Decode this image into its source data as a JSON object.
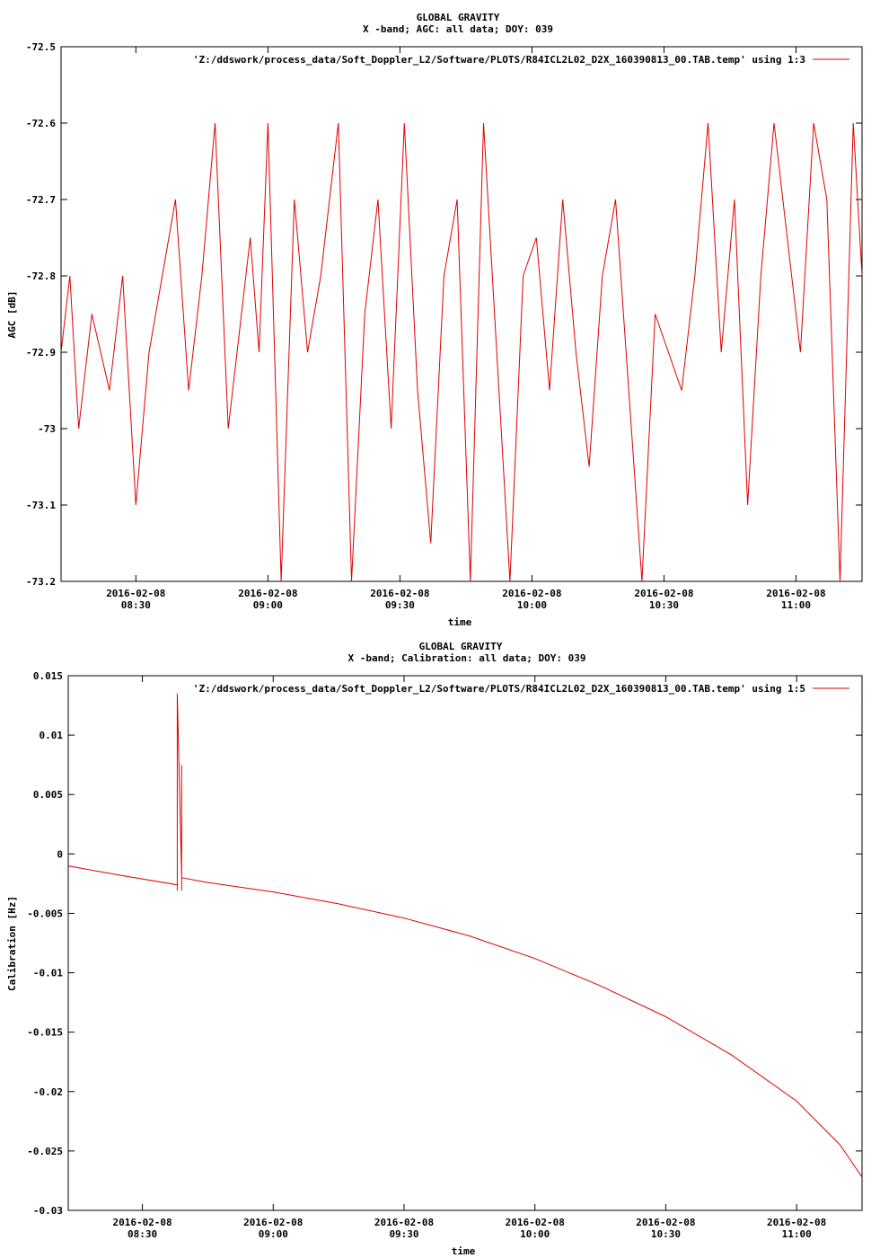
{
  "chart_data": [
    {
      "type": "line",
      "title": "GLOBAL GRAVITY",
      "subtitle": "X -band; AGC: all data; DOY: 039",
      "xlabel": "time",
      "ylabel": "AGC [dB]",
      "legend": "'Z:/ddswork/process_data/Soft_Doppler_L2/Software/PLOTS/R84ICL2L02_D2X_160390813_00.TAB.temp' using 1:3",
      "legend_position": "top-right",
      "line_color": "#dd0000",
      "ylim": [
        -73.2,
        -72.5
      ],
      "xlim": [
        "2016-02-08 08:13",
        "2016-02-08 11:15"
      ],
      "ytick_values": [
        -72.5,
        -72.6,
        -72.7,
        -72.8,
        -72.9,
        -73,
        -73.1,
        -73.2
      ],
      "ytick_labels": [
        "-72.5",
        "-72.6",
        "-72.7",
        "-72.8",
        "-72.9",
        "-73",
        "-73.1",
        "-73.2"
      ],
      "xtick_values": [
        "2016-02-08 08:30",
        "2016-02-08 09:00",
        "2016-02-08 09:30",
        "2016-02-08 10:00",
        "2016-02-08 10:30",
        "2016-02-08 11:00"
      ],
      "xtick_labels": [
        {
          "date": "2016-02-08",
          "time": "08:30"
        },
        {
          "date": "2016-02-08",
          "time": "09:00"
        },
        {
          "date": "2016-02-08",
          "time": "09:30"
        },
        {
          "date": "2016-02-08",
          "time": "10:00"
        },
        {
          "date": "2016-02-08",
          "time": "10:30"
        },
        {
          "date": "2016-02-08",
          "time": "11:00"
        }
      ],
      "series": [
        {
          "x": [
            "2016-02-08 08:13",
            "2016-02-08 08:15",
            "2016-02-08 08:17",
            "2016-02-08 08:20",
            "2016-02-08 08:24",
            "2016-02-08 08:27",
            "2016-02-08 08:30",
            "2016-02-08 08:33",
            "2016-02-08 08:36",
            "2016-02-08 08:39",
            "2016-02-08 08:42",
            "2016-02-08 08:45",
            "2016-02-08 08:48",
            "2016-02-08 08:51",
            "2016-02-08 08:54",
            "2016-02-08 08:56",
            "2016-02-08 08:58",
            "2016-02-08 09:00",
            "2016-02-08 09:03",
            "2016-02-08 09:06",
            "2016-02-08 09:09",
            "2016-02-08 09:12",
            "2016-02-08 09:16",
            "2016-02-08 09:19",
            "2016-02-08 09:22",
            "2016-02-08 09:25",
            "2016-02-08 09:28",
            "2016-02-08 09:31",
            "2016-02-08 09:34",
            "2016-02-08 09:37",
            "2016-02-08 09:40",
            "2016-02-08 09:43",
            "2016-02-08 09:46",
            "2016-02-08 09:49",
            "2016-02-08 09:52",
            "2016-02-08 09:55",
            "2016-02-08 09:58",
            "2016-02-08 10:01",
            "2016-02-08 10:04",
            "2016-02-08 10:07",
            "2016-02-08 10:10",
            "2016-02-08 10:13",
            "2016-02-08 10:16",
            "2016-02-08 10:19",
            "2016-02-08 10:22",
            "2016-02-08 10:25",
            "2016-02-08 10:28",
            "2016-02-08 10:31",
            "2016-02-08 10:34",
            "2016-02-08 10:37",
            "2016-02-08 10:40",
            "2016-02-08 10:43",
            "2016-02-08 10:46",
            "2016-02-08 10:49",
            "2016-02-08 10:52",
            "2016-02-08 10:55",
            "2016-02-08 10:58",
            "2016-02-08 11:01",
            "2016-02-08 11:04",
            "2016-02-08 11:07",
            "2016-02-08 11:10",
            "2016-02-08 11:13",
            "2016-02-08 11:15"
          ],
          "y": [
            -72.9,
            -72.8,
            -73.0,
            -72.85,
            -72.95,
            -72.8,
            -73.1,
            -72.9,
            -72.8,
            -72.7,
            -72.95,
            -72.8,
            -72.6,
            -73.0,
            -72.85,
            -72.75,
            -72.9,
            -72.6,
            -73.2,
            -72.7,
            -72.9,
            -72.8,
            -72.6,
            -73.2,
            -72.85,
            -72.7,
            -73.0,
            -72.6,
            -72.95,
            -73.15,
            -72.8,
            -72.7,
            -73.2,
            -72.6,
            -72.9,
            -73.2,
            -72.8,
            -72.75,
            -72.95,
            -72.7,
            -72.9,
            -73.05,
            -72.8,
            -72.7,
            -72.95,
            -73.2,
            -72.85,
            -72.9,
            -72.95,
            -72.8,
            -72.6,
            -72.9,
            -72.7,
            -73.1,
            -72.8,
            -72.6,
            -72.75,
            -72.9,
            -72.6,
            -72.7,
            -73.2,
            -72.6,
            -72.8
          ]
        }
      ]
    },
    {
      "type": "line",
      "title": "GLOBAL GRAVITY",
      "subtitle": "X -band; Calibration: all data; DOY: 039",
      "xlabel": "time",
      "ylabel": "Calibration [Hz]",
      "legend": "'Z:/ddswork/process_data/Soft_Doppler_L2/Software/PLOTS/R84ICL2L02_D2X_160390813_00.TAB.temp' using 1:5",
      "legend_position": "top-right",
      "line_color": "#dd0000",
      "ylim": [
        -0.03,
        0.015
      ],
      "xlim": [
        "2016-02-08 08:13",
        "2016-02-08 11:15"
      ],
      "ytick_values": [
        0.015,
        0.01,
        0.005,
        0,
        -0.005,
        -0.01,
        -0.015,
        -0.02,
        -0.025,
        -0.03
      ],
      "ytick_labels": [
        "0.015",
        "0.01",
        "0.005",
        "0",
        "-0.005",
        "-0.01",
        "-0.015",
        "-0.02",
        "-0.025",
        "-0.03"
      ],
      "xtick_values": [
        "2016-02-08 08:30",
        "2016-02-08 09:00",
        "2016-02-08 09:30",
        "2016-02-08 10:00",
        "2016-02-08 10:30",
        "2016-02-08 11:00"
      ],
      "xtick_labels": [
        {
          "date": "2016-02-08",
          "time": "08:30"
        },
        {
          "date": "2016-02-08",
          "time": "09:00"
        },
        {
          "date": "2016-02-08",
          "time": "09:30"
        },
        {
          "date": "2016-02-08",
          "time": "10:00"
        },
        {
          "date": "2016-02-08",
          "time": "10:30"
        },
        {
          "date": "2016-02-08",
          "time": "11:00"
        }
      ],
      "series": [
        {
          "x": [
            "2016-02-08 08:13",
            "2016-02-08 08:25",
            "2016-02-08 08:38",
            "2016-02-08 08:38",
            "2016-02-08 08:38",
            "2016-02-08 08:39",
            "2016-02-08 08:39",
            "2016-02-08 08:39",
            "2016-02-08 08:39",
            "2016-02-08 08:45",
            "2016-02-08 09:00",
            "2016-02-08 09:15",
            "2016-02-08 09:30",
            "2016-02-08 09:45",
            "2016-02-08 10:00",
            "2016-02-08 10:15",
            "2016-02-08 10:30",
            "2016-02-08 10:45",
            "2016-02-08 11:00",
            "2016-02-08 11:10",
            "2016-02-08 11:15"
          ],
          "y": [
            -0.001,
            -0.0018,
            -0.0026,
            -0.0031,
            0.0135,
            -0.002,
            0.0075,
            -0.0031,
            -0.002,
            -0.0024,
            -0.0032,
            -0.0042,
            -0.0054,
            -0.0069,
            -0.0088,
            -0.0111,
            -0.0137,
            -0.0169,
            -0.0208,
            -0.0245,
            -0.0272
          ]
        }
      ]
    }
  ]
}
